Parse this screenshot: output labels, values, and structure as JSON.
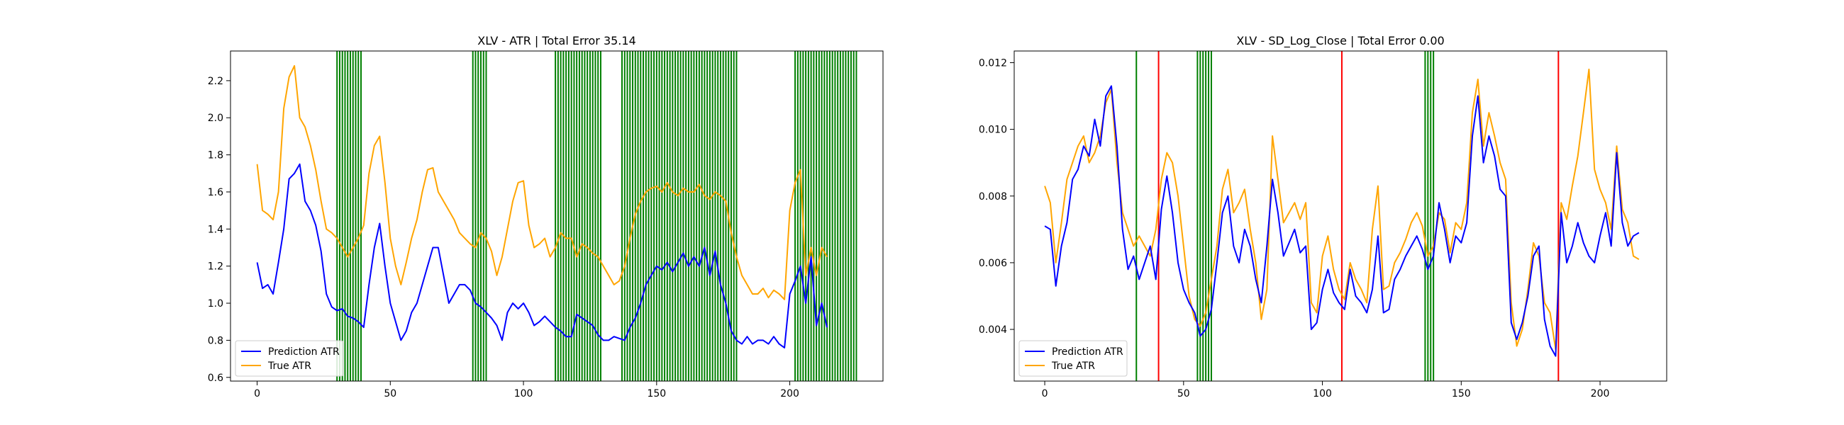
{
  "colors": {
    "prediction": "#0000ff",
    "truth": "#ffa500",
    "vline_green": "#008000",
    "vline_red": "#ff0000"
  },
  "chart_data": [
    {
      "type": "line",
      "title": "XLV - ATR | Total Error 35.14",
      "xlabel": "",
      "ylabel": "",
      "xlim": [
        -10,
        235
      ],
      "ylim": [
        0.58,
        2.36
      ],
      "xticks": [
        0,
        50,
        100,
        150,
        200
      ],
      "yticks": [
        0.6,
        0.8,
        1.0,
        1.2,
        1.4,
        1.6,
        1.8,
        2.0,
        2.2
      ],
      "ytick_labels": [
        "0.6",
        "0.8",
        "1.0",
        "1.2",
        "1.4",
        "1.6",
        "1.8",
        "2.0",
        "2.2"
      ],
      "legend": {
        "placement": "lower-left",
        "entries": [
          "Prediction ATR",
          "True ATR"
        ]
      },
      "series": [
        {
          "name": "Prediction ATR",
          "color": "#0000ff",
          "x": [
            0,
            2,
            4,
            6,
            8,
            10,
            12,
            14,
            16,
            18,
            20,
            22,
            24,
            26,
            28,
            30,
            32,
            34,
            36,
            38,
            40,
            42,
            44,
            46,
            48,
            50,
            52,
            54,
            56,
            58,
            60,
            62,
            64,
            66,
            68,
            70,
            72,
            74,
            76,
            78,
            80,
            82,
            84,
            86,
            88,
            90,
            92,
            94,
            96,
            98,
            100,
            102,
            104,
            106,
            108,
            110,
            112,
            114,
            116,
            118,
            120,
            122,
            124,
            126,
            128,
            130,
            132,
            134,
            136,
            138,
            140,
            142,
            144,
            146,
            148,
            150,
            152,
            154,
            156,
            158,
            160,
            162,
            164,
            166,
            168,
            170,
            172,
            174,
            176,
            178,
            180,
            182,
            184,
            186,
            188,
            190,
            192,
            194,
            196,
            198,
            200,
            202,
            204,
            206,
            208,
            210,
            212,
            214
          ],
          "y": [
            1.22,
            1.08,
            1.1,
            1.05,
            1.22,
            1.4,
            1.67,
            1.7,
            1.75,
            1.55,
            1.5,
            1.42,
            1.28,
            1.05,
            0.98,
            0.96,
            0.97,
            0.93,
            0.92,
            0.9,
            0.87,
            1.1,
            1.3,
            1.43,
            1.2,
            1.0,
            0.9,
            0.8,
            0.85,
            0.95,
            1.0,
            1.1,
            1.2,
            1.3,
            1.3,
            1.15,
            1.0,
            1.05,
            1.1,
            1.1,
            1.07,
            1.0,
            0.98,
            0.95,
            0.92,
            0.88,
            0.8,
            0.95,
            1.0,
            0.97,
            1.0,
            0.95,
            0.88,
            0.9,
            0.93,
            0.9,
            0.87,
            0.85,
            0.82,
            0.82,
            0.94,
            0.92,
            0.9,
            0.88,
            0.83,
            0.8,
            0.8,
            0.82,
            0.81,
            0.8,
            0.87,
            0.92,
            1.0,
            1.1,
            1.15,
            1.2,
            1.18,
            1.22,
            1.17,
            1.22,
            1.27,
            1.2,
            1.25,
            1.2,
            1.3,
            1.15,
            1.28,
            1.1,
            1.0,
            0.85,
            0.8,
            0.78,
            0.82,
            0.78,
            0.8,
            0.8,
            0.78,
            0.82,
            0.78,
            0.76,
            1.05,
            1.12,
            1.2,
            1.0,
            1.25,
            0.88,
            1.0,
            0.87
          ]
        },
        {
          "name": "True ATR",
          "color": "#ffa500",
          "x": [
            0,
            2,
            4,
            6,
            8,
            10,
            12,
            14,
            16,
            18,
            20,
            22,
            24,
            26,
            28,
            30,
            32,
            34,
            36,
            38,
            40,
            42,
            44,
            46,
            48,
            50,
            52,
            54,
            56,
            58,
            60,
            62,
            64,
            66,
            68,
            70,
            72,
            74,
            76,
            78,
            80,
            82,
            84,
            86,
            88,
            90,
            92,
            94,
            96,
            98,
            100,
            102,
            104,
            106,
            108,
            110,
            112,
            114,
            116,
            118,
            120,
            122,
            124,
            126,
            128,
            130,
            132,
            134,
            136,
            138,
            140,
            142,
            144,
            146,
            148,
            150,
            152,
            154,
            156,
            158,
            160,
            162,
            164,
            166,
            168,
            170,
            172,
            174,
            176,
            178,
            180,
            182,
            184,
            186,
            188,
            190,
            192,
            194,
            196,
            198,
            200,
            202,
            204,
            206,
            208,
            210,
            212,
            214
          ],
          "y": [
            1.75,
            1.5,
            1.48,
            1.45,
            1.6,
            2.05,
            2.22,
            2.28,
            2.0,
            1.95,
            1.85,
            1.72,
            1.55,
            1.4,
            1.38,
            1.35,
            1.3,
            1.25,
            1.3,
            1.35,
            1.42,
            1.7,
            1.85,
            1.9,
            1.65,
            1.35,
            1.2,
            1.1,
            1.22,
            1.35,
            1.45,
            1.6,
            1.72,
            1.73,
            1.6,
            1.55,
            1.5,
            1.45,
            1.38,
            1.35,
            1.32,
            1.3,
            1.38,
            1.35,
            1.28,
            1.15,
            1.25,
            1.4,
            1.55,
            1.65,
            1.66,
            1.42,
            1.3,
            1.32,
            1.35,
            1.25,
            1.3,
            1.38,
            1.35,
            1.35,
            1.25,
            1.32,
            1.3,
            1.27,
            1.25,
            1.2,
            1.15,
            1.1,
            1.12,
            1.2,
            1.35,
            1.48,
            1.55,
            1.6,
            1.62,
            1.63,
            1.6,
            1.65,
            1.6,
            1.58,
            1.62,
            1.6,
            1.6,
            1.64,
            1.58,
            1.56,
            1.6,
            1.58,
            1.55,
            1.38,
            1.25,
            1.15,
            1.1,
            1.05,
            1.05,
            1.08,
            1.03,
            1.07,
            1.05,
            1.02,
            1.5,
            1.65,
            1.72,
            1.15,
            1.3,
            1.15,
            1.3,
            1.25
          ]
        }
      ],
      "vlines_green": [
        30,
        31,
        32,
        33,
        34,
        35,
        36,
        37,
        38,
        39,
        81,
        82,
        83,
        84,
        85,
        86,
        112,
        113,
        114,
        115,
        116,
        117,
        118,
        119,
        120,
        121,
        122,
        123,
        124,
        125,
        126,
        127,
        128,
        129,
        137,
        138,
        139,
        140,
        141,
        142,
        143,
        144,
        145,
        146,
        147,
        148,
        149,
        150,
        151,
        152,
        153,
        154,
        155,
        156,
        157,
        158,
        159,
        160,
        161,
        162,
        163,
        164,
        165,
        166,
        167,
        168,
        169,
        170,
        171,
        172,
        173,
        174,
        175,
        176,
        177,
        178,
        179,
        180,
        202,
        203,
        204,
        205,
        206,
        207,
        208,
        209,
        210,
        211,
        212,
        213,
        214,
        215,
        216,
        217,
        218,
        219,
        220,
        221,
        222,
        223,
        224,
        225
      ],
      "vlines_red": []
    },
    {
      "type": "line",
      "title": "XLV - SD_Log_Close | Total Error 0.00",
      "xlabel": "",
      "ylabel": "",
      "xlim": [
        -11,
        224
      ],
      "ylim": [
        0.00245,
        0.01235
      ],
      "xticks": [
        0,
        50,
        100,
        150,
        200
      ],
      "yticks": [
        0.004,
        0.006,
        0.008,
        0.01,
        0.012
      ],
      "ytick_labels": [
        "0.004",
        "0.006",
        "0.008",
        "0.010",
        "0.012"
      ],
      "legend": {
        "placement": "lower-left",
        "entries": [
          "Prediction ATR",
          "True ATR"
        ]
      },
      "series": [
        {
          "name": "Prediction ATR",
          "color": "#0000ff",
          "x": [
            0,
            2,
            4,
            6,
            8,
            10,
            12,
            14,
            16,
            18,
            20,
            22,
            24,
            26,
            28,
            30,
            32,
            34,
            36,
            38,
            40,
            42,
            44,
            46,
            48,
            50,
            52,
            54,
            56,
            58,
            60,
            62,
            64,
            66,
            68,
            70,
            72,
            74,
            76,
            78,
            80,
            82,
            84,
            86,
            88,
            90,
            92,
            94,
            96,
            98,
            100,
            102,
            104,
            106,
            108,
            110,
            112,
            114,
            116,
            118,
            120,
            122,
            124,
            126,
            128,
            130,
            132,
            134,
            136,
            138,
            140,
            142,
            144,
            146,
            148,
            150,
            152,
            154,
            156,
            158,
            160,
            162,
            164,
            166,
            168,
            170,
            172,
            174,
            176,
            178,
            180,
            182,
            184,
            186,
            188,
            190,
            192,
            194,
            196,
            198,
            200,
            202,
            204,
            206,
            208,
            210,
            212,
            214
          ],
          "y": [
            0.0071,
            0.007,
            0.0053,
            0.0065,
            0.0072,
            0.0085,
            0.0088,
            0.0095,
            0.0092,
            0.0103,
            0.0095,
            0.011,
            0.0113,
            0.0095,
            0.007,
            0.0058,
            0.0062,
            0.0055,
            0.006,
            0.0065,
            0.0055,
            0.0076,
            0.0086,
            0.0075,
            0.006,
            0.0052,
            0.0048,
            0.0045,
            0.0038,
            0.004,
            0.0046,
            0.006,
            0.0075,
            0.008,
            0.0065,
            0.006,
            0.007,
            0.0065,
            0.0055,
            0.0048,
            0.0065,
            0.0085,
            0.0075,
            0.0062,
            0.0066,
            0.007,
            0.0063,
            0.0065,
            0.004,
            0.0042,
            0.0052,
            0.0058,
            0.0051,
            0.0048,
            0.0046,
            0.0058,
            0.005,
            0.0048,
            0.0045,
            0.0052,
            0.0068,
            0.0045,
            0.0046,
            0.0055,
            0.0058,
            0.0062,
            0.0065,
            0.0068,
            0.0064,
            0.0058,
            0.0062,
            0.0078,
            0.007,
            0.006,
            0.0068,
            0.0066,
            0.0072,
            0.0098,
            0.011,
            0.009,
            0.0098,
            0.0092,
            0.0082,
            0.008,
            0.0042,
            0.0037,
            0.0042,
            0.005,
            0.0062,
            0.0065,
            0.0043,
            0.0035,
            0.0032,
            0.0075,
            0.006,
            0.0065,
            0.0072,
            0.0066,
            0.0062,
            0.006,
            0.0068,
            0.0075,
            0.0065,
            0.0093,
            0.0072,
            0.0065,
            0.0068,
            0.0069
          ]
        },
        {
          "name": "True ATR",
          "color": "#ffa500",
          "x": [
            0,
            2,
            4,
            6,
            8,
            10,
            12,
            14,
            16,
            18,
            20,
            22,
            24,
            26,
            28,
            30,
            32,
            34,
            36,
            38,
            40,
            42,
            44,
            46,
            48,
            50,
            52,
            54,
            56,
            58,
            60,
            62,
            64,
            66,
            68,
            70,
            72,
            74,
            76,
            78,
            80,
            82,
            84,
            86,
            88,
            90,
            92,
            94,
            96,
            98,
            100,
            102,
            104,
            106,
            108,
            110,
            112,
            114,
            116,
            118,
            120,
            122,
            124,
            126,
            128,
            130,
            132,
            134,
            136,
            138,
            140,
            142,
            144,
            146,
            148,
            150,
            152,
            154,
            156,
            158,
            160,
            162,
            164,
            166,
            168,
            170,
            172,
            174,
            176,
            178,
            180,
            182,
            184,
            186,
            188,
            190,
            192,
            194,
            196,
            198,
            200,
            202,
            204,
            206,
            208,
            210,
            212,
            214
          ],
          "y": [
            0.0083,
            0.0078,
            0.006,
            0.0072,
            0.0085,
            0.009,
            0.0095,
            0.0098,
            0.009,
            0.0093,
            0.0098,
            0.0108,
            0.0112,
            0.009,
            0.0075,
            0.007,
            0.0065,
            0.0068,
            0.0065,
            0.0062,
            0.007,
            0.0085,
            0.0093,
            0.009,
            0.008,
            0.0065,
            0.005,
            0.0043,
            0.0041,
            0.0045,
            0.0055,
            0.0065,
            0.0082,
            0.0088,
            0.0075,
            0.0078,
            0.0082,
            0.007,
            0.006,
            0.0043,
            0.0052,
            0.0098,
            0.0085,
            0.0072,
            0.0075,
            0.0078,
            0.0073,
            0.0078,
            0.0048,
            0.0045,
            0.0062,
            0.0068,
            0.0058,
            0.0052,
            0.0049,
            0.006,
            0.0055,
            0.0052,
            0.0048,
            0.007,
            0.0083,
            0.0052,
            0.0053,
            0.006,
            0.0063,
            0.0067,
            0.0072,
            0.0075,
            0.0071,
            0.0062,
            0.0065,
            0.0075,
            0.0073,
            0.0063,
            0.0072,
            0.007,
            0.0078,
            0.0105,
            0.0115,
            0.0095,
            0.0105,
            0.0098,
            0.009,
            0.0085,
            0.0048,
            0.0035,
            0.004,
            0.0052,
            0.0066,
            0.0062,
            0.0048,
            0.0045,
            0.0034,
            0.0078,
            0.0073,
            0.0083,
            0.0092,
            0.0105,
            0.0118,
            0.0088,
            0.0082,
            0.0078,
            0.007,
            0.0095,
            0.0076,
            0.0072,
            0.0062,
            0.0061
          ]
        }
      ],
      "vlines_green": [
        33,
        55,
        56,
        57,
        58,
        59,
        60,
        137,
        138,
        139,
        140
      ],
      "vlines_red": [
        41,
        107,
        185
      ]
    }
  ]
}
